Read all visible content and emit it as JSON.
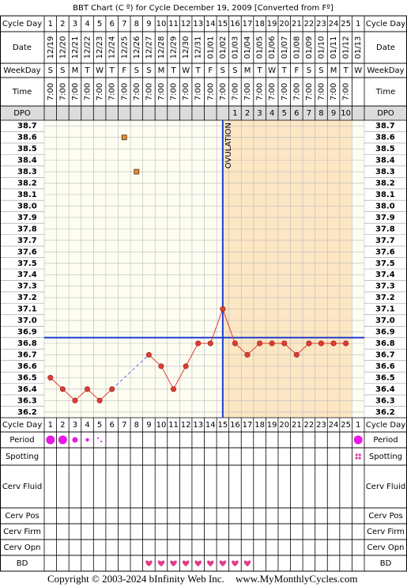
{
  "title": "BBT Chart (C º) for Cycle December 19, 2009  [Converted from Fº]",
  "footer": {
    "copyright": "Copyright © 2003-2024 bInfinity Web Inc.",
    "site": "www.MyMonthlyCycles.com"
  },
  "row_labels": {
    "cycle_day": "Cycle Day",
    "date": "Date",
    "weekday": "WeekDay",
    "time": "Time",
    "dpo": "DPO",
    "period": "Period",
    "spotting": "Spotting",
    "cerv_fluid": "Cerv Fluid",
    "cerv_pos": "Cerv Pos",
    "cerv_firm": "Cerv Firm",
    "cerv_opn": "Cerv Opn",
    "bd": "BD"
  },
  "days": {
    "cycle_day": [
      1,
      2,
      3,
      4,
      5,
      6,
      7,
      8,
      9,
      10,
      11,
      12,
      13,
      14,
      15,
      16,
      17,
      18,
      19,
      20,
      21,
      22,
      23,
      24,
      25,
      1
    ],
    "date": [
      "12/19",
      "12/20",
      "12/21",
      "12/22",
      "12/23",
      "12/24",
      "12/25",
      "12/26",
      "12/27",
      "12/28",
      "12/29",
      "12/30",
      "12/31",
      "01/01",
      "01/02",
      "01/03",
      "01/04",
      "01/05",
      "01/06",
      "01/07",
      "01/08",
      "01/09",
      "01/10",
      "01/11",
      "01/12",
      "01/13"
    ],
    "weekday": [
      "S",
      "S",
      "M",
      "T",
      "W",
      "T",
      "F",
      "S",
      "S",
      "M",
      "T",
      "W",
      "T",
      "F",
      "S",
      "S",
      "M",
      "T",
      "W",
      "T",
      "F",
      "S",
      "S",
      "M",
      "T",
      "W"
    ],
    "time": [
      "7:00",
      "7:00",
      "7:00",
      "7:00",
      "7:00",
      "7:00",
      "7:00",
      "7:00",
      "7:00",
      "7:00",
      "7:00",
      "7:00",
      "7:00",
      "7:00",
      "7:00",
      "7:00",
      "7:00",
      "7:00",
      "7:00",
      "7:00",
      "7:00",
      "7:00",
      "7:00",
      "7:00",
      "7:00",
      null
    ],
    "dpo": [
      null,
      null,
      null,
      null,
      null,
      null,
      null,
      null,
      null,
      null,
      null,
      null,
      null,
      null,
      null,
      1,
      2,
      3,
      4,
      5,
      6,
      7,
      8,
      9,
      10,
      null
    ],
    "period": [
      4,
      4,
      3,
      2,
      1,
      null,
      null,
      null,
      null,
      null,
      null,
      null,
      null,
      null,
      null,
      null,
      null,
      null,
      null,
      null,
      null,
      null,
      null,
      null,
      null,
      4
    ],
    "spotting": [
      null,
      null,
      null,
      null,
      null,
      null,
      null,
      null,
      null,
      null,
      null,
      null,
      null,
      null,
      null,
      null,
      null,
      null,
      null,
      null,
      null,
      null,
      null,
      null,
      null,
      1
    ],
    "bd": [
      null,
      null,
      null,
      null,
      null,
      null,
      null,
      null,
      true,
      true,
      true,
      true,
      true,
      true,
      true,
      true,
      true,
      null,
      null,
      null,
      null,
      null,
      null,
      null,
      null,
      null
    ]
  },
  "chart_data": {
    "type": "line",
    "color": "#e03c31",
    "values": [
      36.5,
      36.4,
      36.3,
      36.4,
      36.3,
      36.4,
      null,
      null,
      36.7,
      36.6,
      36.4,
      36.6,
      36.8,
      36.8,
      37.1,
      36.8,
      36.7,
      36.8,
      36.8,
      36.8,
      36.7,
      36.8,
      36.8,
      36.8,
      36.8,
      null
    ],
    "excluded": [
      null,
      null,
      null,
      null,
      null,
      null,
      38.6,
      38.3,
      null,
      null,
      null,
      null,
      null,
      null,
      null,
      null,
      null,
      null,
      null,
      null,
      null,
      null,
      null,
      null,
      null,
      null
    ],
    "coverline": 36.85,
    "ovulation_day": 15,
    "annotation": "OVULATION",
    "ylim": [
      36.15,
      38.75
    ],
    "yticks": [
      36.2,
      36.3,
      36.4,
      36.5,
      36.6,
      36.7,
      36.8,
      36.9,
      {
        "value": 37,
        "label": "37.0"
      },
      37.1,
      37.2,
      37.3,
      37.4,
      37.5,
      37.6,
      37.7,
      37.8,
      37.9,
      {
        "value": 38,
        "label": "38.0"
      },
      38.1,
      38.2,
      38.3,
      38.4,
      38.5,
      38.6,
      38.7
    ],
    "grid": true
  }
}
